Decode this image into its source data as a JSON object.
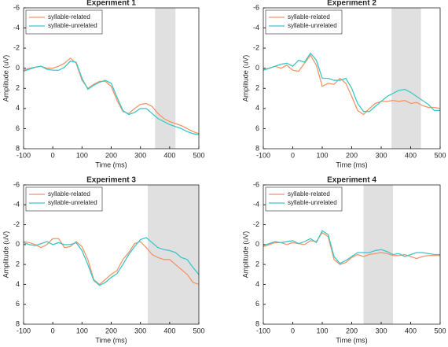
{
  "chart_data": [
    {
      "type": "line",
      "title": "Experiment 1",
      "x_label": "Time (ms)",
      "y_label": "Amplitude (uV)",
      "x": [
        -100,
        -80,
        -60,
        -40,
        -20,
        0,
        20,
        40,
        60,
        80,
        100,
        120,
        140,
        160,
        180,
        200,
        220,
        240,
        260,
        280,
        300,
        320,
        340,
        360,
        380,
        400,
        420,
        440,
        460,
        480,
        500
      ],
      "series": [
        {
          "name": "syllable-related",
          "color": "#f4956a",
          "values": [
            0.2,
            0,
            -0.1,
            -0.2,
            0,
            0,
            -0.2,
            -0.5,
            -1.0,
            -0.5,
            1.2,
            2.0,
            1.6,
            1.3,
            1.3,
            1.8,
            3.2,
            4.3,
            4.5,
            4.0,
            3.6,
            3.5,
            3.8,
            4.5,
            5.0,
            5.3,
            5.5,
            5.7,
            6.0,
            6.3,
            6.5
          ]
        },
        {
          "name": "syllable-unrelated",
          "color": "#3cc8c8",
          "values": [
            0.3,
            0.1,
            -0.1,
            -0.2,
            0.1,
            0.2,
            0.2,
            -0.1,
            -0.7,
            -0.6,
            1.0,
            2.1,
            1.7,
            1.4,
            1.2,
            1.5,
            2.9,
            4.2,
            4.6,
            4.4,
            4.0,
            4.0,
            4.5,
            5.0,
            5.3,
            5.6,
            5.8,
            6.0,
            6.3,
            6.5,
            6.6
          ]
        }
      ],
      "shaded_window": [
        350,
        420
      ],
      "xlim": [
        -100,
        500
      ],
      "xticks": [
        -100,
        0,
        100,
        200,
        300,
        400,
        500
      ],
      "ylim": [
        -6,
        8
      ],
      "yticks": [
        -6,
        -4,
        -2,
        0,
        2,
        4,
        6,
        8
      ],
      "y_reversed": true,
      "legend": "upper-left"
    },
    {
      "type": "line",
      "title": "Experiment 2",
      "x_label": "Time (ms)",
      "y_label": "Amplitude (uV)",
      "x": [
        -100,
        -80,
        -60,
        -40,
        -20,
        0,
        20,
        40,
        60,
        80,
        100,
        120,
        140,
        160,
        180,
        200,
        220,
        240,
        260,
        280,
        300,
        320,
        340,
        360,
        380,
        400,
        420,
        440,
        460,
        480,
        500
      ],
      "series": [
        {
          "name": "syllable-related",
          "color": "#f4956a",
          "values": [
            0.1,
            0,
            -0.2,
            0,
            -0.3,
            0.2,
            0.3,
            -0.5,
            -1.3,
            -0.3,
            1.8,
            1.5,
            1.6,
            1.0,
            1.5,
            2.8,
            4.2,
            4.6,
            4.0,
            3.5,
            3.3,
            3.3,
            3.2,
            3.3,
            3.2,
            3.5,
            3.4,
            3.7,
            3.9,
            3.9,
            4.0
          ]
        },
        {
          "name": "syllable-unrelated",
          "color": "#3cc8c8",
          "values": [
            0.2,
            0,
            -0.2,
            -0.4,
            -0.5,
            -0.2,
            -0.8,
            -0.6,
            -1.5,
            -0.8,
            1.0,
            1.0,
            1.2,
            1.2,
            1.0,
            2.0,
            3.5,
            4.3,
            4.3,
            3.8,
            3.3,
            2.8,
            2.5,
            2.2,
            2.1,
            2.4,
            2.8,
            3.2,
            3.6,
            4.2,
            4.2
          ]
        }
      ],
      "shaded_window": [
        335,
        435
      ],
      "xlim": [
        -100,
        500
      ],
      "xticks": [
        -100,
        0,
        100,
        200,
        300,
        400,
        500
      ],
      "ylim": [
        -6,
        8
      ],
      "yticks": [
        -6,
        -4,
        -2,
        0,
        2,
        4,
        6,
        8
      ],
      "y_reversed": true,
      "legend": "upper-left"
    },
    {
      "type": "line",
      "title": "Experiment 3",
      "x_label": "Time (ms)",
      "y_label": "Amplitude (uV)",
      "x": [
        -100,
        -80,
        -60,
        -40,
        -20,
        0,
        20,
        40,
        60,
        80,
        100,
        120,
        140,
        160,
        180,
        200,
        220,
        240,
        260,
        280,
        300,
        320,
        340,
        360,
        380,
        400,
        420,
        440,
        460,
        480,
        500
      ],
      "series": [
        {
          "name": "syllable-related",
          "color": "#f4956a",
          "values": [
            -0.3,
            -0.2,
            0,
            0.3,
            0,
            -0.6,
            -0.6,
            0.3,
            0.2,
            -0.3,
            0.2,
            1.5,
            3.5,
            4.0,
            3.5,
            3.0,
            2.6,
            1.5,
            0.8,
            -0.1,
            -0.3,
            0.3,
            1.0,
            1.3,
            1.5,
            1.5,
            2.0,
            2.5,
            3.0,
            3.8,
            4.0
          ]
        },
        {
          "name": "syllable-unrelated",
          "color": "#3cc8c8",
          "values": [
            -0.2,
            0,
            0.1,
            -0.1,
            -0.3,
            0,
            -0.2,
            0,
            0,
            -0.2,
            0.6,
            2.0,
            3.6,
            4.1,
            3.8,
            3.3,
            2.9,
            2.0,
            1.0,
            0.2,
            -0.5,
            -0.7,
            -0.2,
            0.3,
            0.5,
            0.6,
            0.8,
            1.3,
            1.5,
            2.3,
            3.0
          ]
        }
      ],
      "shaded_window": [
        325,
        500
      ],
      "xlim": [
        -100,
        500
      ],
      "xticks": [
        -100,
        0,
        100,
        200,
        300,
        400,
        500
      ],
      "ylim": [
        -6,
        8
      ],
      "yticks": [
        -6,
        -4,
        -2,
        0,
        2,
        4,
        6,
        8
      ],
      "y_reversed": true,
      "legend": "upper-left"
    },
    {
      "type": "line",
      "title": "Experiment 4",
      "x_label": "Time (ms)",
      "y_label": "Amplitude (uV)",
      "x": [
        -100,
        -80,
        -60,
        -40,
        -20,
        0,
        20,
        40,
        60,
        80,
        100,
        120,
        140,
        160,
        180,
        200,
        220,
        240,
        260,
        280,
        300,
        320,
        340,
        360,
        380,
        400,
        420,
        440,
        460,
        480,
        500
      ],
      "series": [
        {
          "name": "syllable-related",
          "color": "#f4956a",
          "values": [
            0.2,
            0,
            -0.2,
            -0.2,
            0,
            -0.2,
            -0.1,
            0,
            -0.4,
            -0.3,
            -1.2,
            -0.8,
            1.5,
            2.0,
            1.8,
            1.3,
            1.0,
            1.2,
            1.0,
            0.9,
            0.8,
            0.9,
            1.1,
            1.1,
            1.0,
            1.2,
            1.4,
            1.2,
            1.1,
            1.1,
            1.1
          ]
        },
        {
          "name": "syllable-unrelated",
          "color": "#3cc8c8",
          "values": [
            0.1,
            -0.1,
            -0.3,
            -0.2,
            -0.3,
            -0.4,
            -0.1,
            -0.3,
            -0.6,
            -0.2,
            -1.4,
            -1.0,
            1.2,
            1.9,
            1.6,
            1.2,
            0.8,
            0.8,
            0.8,
            0.6,
            0.5,
            0.7,
            1.0,
            0.9,
            1.2,
            1.0,
            0.8,
            0.8,
            0.9,
            1.0,
            1.0
          ]
        }
      ],
      "shaded_window": [
        240,
        340
      ],
      "xlim": [
        -100,
        500
      ],
      "xticks": [
        -100,
        0,
        100,
        200,
        300,
        400,
        500
      ],
      "ylim": [
        -6,
        8
      ],
      "yticks": [
        -6,
        -4,
        -2,
        0,
        2,
        4,
        6,
        8
      ],
      "y_reversed": true,
      "legend": "upper-left"
    }
  ]
}
